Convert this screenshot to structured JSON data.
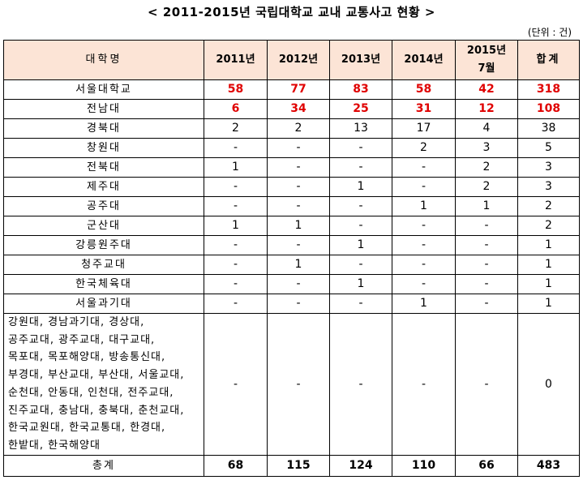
{
  "title": "< 2011-2015년 국립대학교 교내 교통사고 현황 >",
  "unit": "(단위 : 건)",
  "headers": {
    "university": "대학명",
    "y2011": "2011년",
    "y2012": "2012년",
    "y2013": "2013년",
    "y2014": "2014년",
    "y2015_line1": "2015년",
    "y2015_line2": "7월",
    "total": "합계"
  },
  "rows": [
    {
      "name": "서울대학교",
      "v2011": "58",
      "v2012": "77",
      "v2013": "83",
      "v2014": "58",
      "v2015": "42",
      "total": "318",
      "highlight": true
    },
    {
      "name": "전남대",
      "v2011": "6",
      "v2012": "34",
      "v2013": "25",
      "v2014": "31",
      "v2015": "12",
      "total": "108",
      "highlight": true
    },
    {
      "name": "경북대",
      "v2011": "2",
      "v2012": "2",
      "v2013": "13",
      "v2014": "17",
      "v2015": "4",
      "total": "38"
    },
    {
      "name": "창원대",
      "v2011": "-",
      "v2012": "-",
      "v2013": "-",
      "v2014": "2",
      "v2015": "3",
      "total": "5"
    },
    {
      "name": "전북대",
      "v2011": "1",
      "v2012": "-",
      "v2013": "-",
      "v2014": "-",
      "v2015": "2",
      "total": "3"
    },
    {
      "name": "제주대",
      "v2011": "-",
      "v2012": "-",
      "v2013": "1",
      "v2014": "-",
      "v2015": "2",
      "total": "3"
    },
    {
      "name": "공주대",
      "v2011": "-",
      "v2012": "-",
      "v2013": "-",
      "v2014": "1",
      "v2015": "1",
      "total": "2"
    },
    {
      "name": "군산대",
      "v2011": "1",
      "v2012": "1",
      "v2013": "-",
      "v2014": "-",
      "v2015": "-",
      "total": "2"
    },
    {
      "name": "강릉원주대",
      "v2011": "-",
      "v2012": "-",
      "v2013": "1",
      "v2014": "-",
      "v2015": "-",
      "total": "1"
    },
    {
      "name": "청주교대",
      "v2011": "-",
      "v2012": "1",
      "v2013": "-",
      "v2014": "-",
      "v2015": "-",
      "total": "1"
    },
    {
      "name": "한국체육대",
      "v2011": "-",
      "v2012": "-",
      "v2013": "1",
      "v2014": "-",
      "v2015": "-",
      "total": "1"
    },
    {
      "name": "서울과기대",
      "v2011": "-",
      "v2012": "-",
      "v2013": "-",
      "v2014": "1",
      "v2015": "-",
      "total": "1"
    }
  ],
  "others": {
    "lines": [
      "강원대, 경남과기대, 경상대,",
      "공주교대, 광주교대, 대구교대,",
      "목포대, 목포해양대, 방송통신대,",
      "부경대, 부산교대, 부산대, 서울교대,",
      "순천대, 안동대, 인천대, 전주교대,",
      "진주교대, 충남대, 충북대, 춘천교대,",
      "한국교원대, 한국교통대, 한경대,",
      "한밭대, 한국해양대"
    ],
    "v2011": "-",
    "v2012": "-",
    "v2013": "-",
    "v2014": "-",
    "v2015": "-",
    "total": "0"
  },
  "total_row": {
    "name": "총계",
    "v2011": "68",
    "v2012": "115",
    "v2013": "124",
    "v2014": "110",
    "v2015": "66",
    "total": "483"
  }
}
